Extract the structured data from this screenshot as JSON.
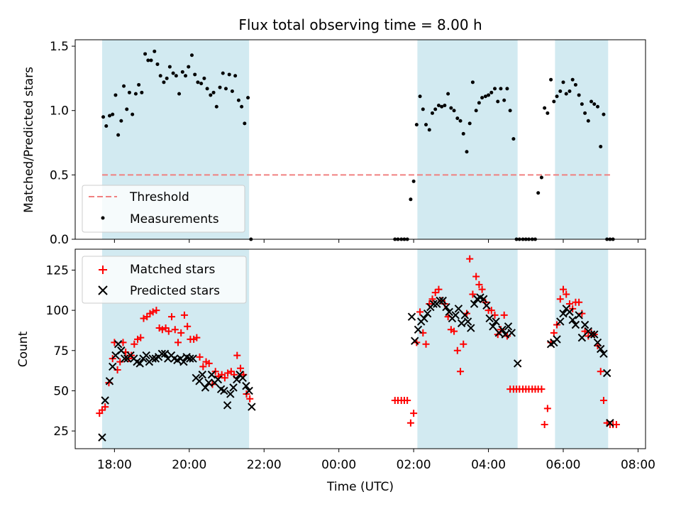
{
  "title": "Flux total observing time = 8.00 h",
  "colors": {
    "band": "#add8e6",
    "threshold": "#f08080",
    "measurement": "#000000",
    "matched": "#ff0000",
    "predicted": "#000000"
  },
  "chart_data": [
    {
      "type": "scatter",
      "ylabel": "Matched/Predicted stars",
      "xlabel": "",
      "ylim": [
        0,
        1.55
      ],
      "yticks": [
        0.0,
        0.5,
        1.0,
        1.5
      ],
      "ytick_labels": [
        "0.0",
        "0.5",
        "1.0",
        "1.5"
      ],
      "xlim_hours": [
        16.95,
        32.2
      ],
      "legend_position": "lower-left",
      "observing_windows_hours": [
        [
          17.67,
          21.6
        ],
        [
          26.1,
          28.78
        ],
        [
          29.78,
          31.2
        ]
      ],
      "threshold": {
        "name": "Threshold",
        "value": 0.5,
        "x_range_hours": [
          17.67,
          31.3
        ],
        "style": "dashed"
      },
      "series": [
        {
          "name": "Measurements",
          "x_hours": [
            17.7,
            17.78,
            17.87,
            17.95,
            18.03,
            18.1,
            18.18,
            18.25,
            18.33,
            18.4,
            18.48,
            18.57,
            18.65,
            18.73,
            18.82,
            18.9,
            18.98,
            19.07,
            19.15,
            19.23,
            19.32,
            19.4,
            19.48,
            19.57,
            19.65,
            19.73,
            19.82,
            19.9,
            19.98,
            20.07,
            20.15,
            20.23,
            20.32,
            20.4,
            20.48,
            20.57,
            20.65,
            20.73,
            20.82,
            20.9,
            20.98,
            21.07,
            21.15,
            21.23,
            21.32,
            21.4,
            21.48,
            21.57,
            21.65,
            25.5,
            25.58,
            25.67,
            25.75,
            25.83,
            25.92,
            26.0,
            26.08,
            26.17,
            26.25,
            26.33,
            26.42,
            26.5,
            26.58,
            26.67,
            26.75,
            26.83,
            26.92,
            27.0,
            27.08,
            27.17,
            27.25,
            27.33,
            27.42,
            27.5,
            27.58,
            27.67,
            27.75,
            27.83,
            27.92,
            28.0,
            28.08,
            28.17,
            28.25,
            28.33,
            28.42,
            28.5,
            28.58,
            28.67,
            28.75,
            28.83,
            28.92,
            29.0,
            29.08,
            29.17,
            29.25,
            29.33,
            29.42,
            29.5,
            29.58,
            29.67,
            29.75,
            29.83,
            29.92,
            30.0,
            30.08,
            30.17,
            30.25,
            30.33,
            30.42,
            30.5,
            30.58,
            30.67,
            30.75,
            30.83,
            30.92,
            31.0,
            31.08,
            31.17,
            31.25,
            31.33
          ],
          "values": [
            0.95,
            0.88,
            0.96,
            0.97,
            1.12,
            0.81,
            0.92,
            1.19,
            1.01,
            1.14,
            0.97,
            1.13,
            1.2,
            1.14,
            1.44,
            1.39,
            1.39,
            1.46,
            1.36,
            1.27,
            1.22,
            1.25,
            1.34,
            1.29,
            1.27,
            1.13,
            1.3,
            1.27,
            1.34,
            1.43,
            1.28,
            1.22,
            1.21,
            1.25,
            1.17,
            1.12,
            1.14,
            1.03,
            1.18,
            1.29,
            1.17,
            1.28,
            1.15,
            1.27,
            1.08,
            1.03,
            0.9,
            1.1,
            0.0,
            0.0,
            0.0,
            0.0,
            0.0,
            0.0,
            0.31,
            0.45,
            0.89,
            1.11,
            1.01,
            0.89,
            0.85,
            0.98,
            1.01,
            1.04,
            1.03,
            1.04,
            1.13,
            1.02,
            1.0,
            0.94,
            0.92,
            0.82,
            0.68,
            0.9,
            1.22,
            1.0,
            1.06,
            1.1,
            1.11,
            1.12,
            1.14,
            1.17,
            1.07,
            1.17,
            1.08,
            1.17,
            1.0,
            0.78,
            0.0,
            0.0,
            0.0,
            0.0,
            0.0,
            0.0,
            0.0,
            0.36,
            0.48,
            1.02,
            0.98,
            1.24,
            1.07,
            1.11,
            1.15,
            1.22,
            1.13,
            1.15,
            1.24,
            1.2,
            1.12,
            1.05,
            0.98,
            0.92,
            1.07,
            1.05,
            1.03,
            0.72,
            0.97,
            0.0,
            0.0,
            0.0
          ]
        }
      ]
    },
    {
      "type": "scatter",
      "ylabel": "Count",
      "xlabel": "Time (UTC)",
      "ylim": [
        14,
        138
      ],
      "yticks": [
        25,
        50,
        75,
        100,
        125
      ],
      "ytick_labels": [
        "25",
        "50",
        "75",
        "100",
        "125"
      ],
      "xlim_hours": [
        16.95,
        32.2
      ],
      "xticks_hours": [
        18,
        20,
        22,
        24,
        26,
        28,
        30,
        32
      ],
      "xtick_labels": [
        "18:00",
        "20:00",
        "22:00",
        "00:00",
        "02:00",
        "04:00",
        "06:00",
        "08:00"
      ],
      "legend_position": "upper-left",
      "observing_windows_hours": [
        [
          17.67,
          21.6
        ],
        [
          26.1,
          28.78
        ],
        [
          29.78,
          31.2
        ]
      ],
      "series": [
        {
          "name": "Matched stars",
          "marker": "+",
          "x_hours": [
            17.6,
            17.67,
            17.75,
            17.85,
            17.95,
            18.0,
            18.08,
            18.15,
            18.23,
            18.3,
            18.38,
            18.45,
            18.53,
            18.62,
            18.7,
            18.78,
            18.87,
            18.95,
            19.03,
            19.12,
            19.2,
            19.28,
            19.37,
            19.45,
            19.53,
            19.62,
            19.7,
            19.78,
            19.87,
            19.95,
            20.03,
            20.12,
            20.2,
            20.28,
            20.37,
            20.45,
            20.53,
            20.62,
            20.7,
            20.78,
            20.87,
            20.95,
            21.03,
            21.12,
            21.2,
            21.28,
            21.37,
            21.45,
            21.53,
            21.62,
            25.5,
            25.58,
            25.67,
            25.75,
            25.83,
            25.92,
            26.0,
            26.08,
            26.17,
            26.25,
            26.33,
            26.42,
            26.5,
            26.58,
            26.67,
            26.75,
            26.83,
            26.92,
            27.0,
            27.08,
            27.17,
            27.25,
            27.33,
            27.42,
            27.5,
            27.58,
            27.67,
            27.75,
            27.83,
            27.92,
            28.0,
            28.08,
            28.17,
            28.25,
            28.33,
            28.42,
            28.5,
            28.58,
            28.67,
            28.75,
            28.83,
            28.92,
            29.0,
            29.08,
            29.17,
            29.25,
            29.33,
            29.42,
            29.5,
            29.58,
            29.67,
            29.75,
            29.83,
            29.92,
            30.0,
            30.08,
            30.17,
            30.25,
            30.33,
            30.42,
            30.5,
            30.58,
            30.67,
            30.75,
            30.83,
            30.92,
            31.0,
            31.08,
            31.17,
            31.25,
            31.33,
            31.42
          ],
          "values": [
            36,
            38,
            40,
            55,
            70,
            80,
            63,
            68,
            80,
            74,
            70,
            72,
            79,
            82,
            83,
            95,
            96,
            98,
            99,
            100,
            89,
            88,
            89,
            87,
            96,
            88,
            80,
            86,
            97,
            90,
            82,
            82,
            83,
            71,
            65,
            68,
            67,
            54,
            62,
            59,
            60,
            58,
            61,
            62,
            60,
            72,
            64,
            60,
            48,
            45,
            44,
            44,
            44,
            44,
            44,
            30,
            36,
            80,
            99,
            86,
            79,
            104,
            107,
            111,
            113,
            106,
            104,
            96,
            88,
            87,
            75,
            62,
            79,
            98,
            132,
            110,
            121,
            116,
            113,
            105,
            100,
            100,
            97,
            85,
            88,
            97,
            84,
            51,
            51,
            51,
            51,
            51,
            51,
            51,
            51,
            51,
            51,
            51,
            29,
            39,
            80,
            86,
            91,
            107,
            113,
            110,
            104,
            101,
            105,
            105,
            98,
            87,
            84,
            86,
            85,
            78,
            62,
            44,
            30,
            29,
            29,
            29
          ]
        },
        {
          "name": "Predicted stars",
          "marker": "x",
          "x_hours": [
            17.67,
            17.75,
            17.87,
            17.95,
            18.03,
            18.1,
            18.18,
            18.27,
            18.35,
            18.43,
            18.52,
            18.6,
            18.68,
            18.77,
            18.85,
            18.93,
            19.02,
            19.1,
            19.18,
            19.27,
            19.35,
            19.43,
            19.52,
            19.6,
            19.68,
            19.77,
            19.85,
            19.93,
            20.02,
            20.1,
            20.18,
            20.27,
            20.35,
            20.43,
            20.52,
            20.6,
            20.68,
            20.77,
            20.85,
            20.93,
            21.02,
            21.1,
            21.18,
            21.27,
            21.35,
            21.43,
            21.52,
            21.6,
            21.67,
            25.95,
            26.03,
            26.12,
            26.2,
            26.28,
            26.37,
            26.45,
            26.53,
            26.62,
            26.7,
            26.78,
            26.87,
            26.95,
            27.03,
            27.12,
            27.2,
            27.28,
            27.37,
            27.45,
            27.53,
            27.62,
            27.7,
            27.78,
            27.87,
            27.95,
            28.03,
            28.12,
            28.2,
            28.28,
            28.37,
            28.45,
            28.53,
            28.62,
            28.78,
            29.67,
            29.75,
            29.83,
            29.92,
            30.0,
            30.08,
            30.17,
            30.25,
            30.33,
            30.42,
            30.5,
            30.58,
            30.67,
            30.75,
            30.83,
            30.92,
            31.0,
            31.08,
            31.17,
            31.25
          ],
          "values": [
            21,
            44,
            56,
            65,
            72,
            79,
            75,
            70,
            70,
            72,
            70,
            68,
            67,
            70,
            72,
            68,
            70,
            70,
            71,
            73,
            73,
            70,
            72,
            70,
            69,
            70,
            68,
            71,
            70,
            70,
            58,
            56,
            60,
            52,
            55,
            60,
            55,
            57,
            51,
            50,
            41,
            48,
            52,
            57,
            60,
            58,
            53,
            50,
            40,
            96,
            81,
            88,
            93,
            95,
            98,
            102,
            104,
            104,
            106,
            106,
            102,
            99,
            95,
            97,
            101,
            92,
            97,
            93,
            89,
            104,
            107,
            108,
            107,
            103,
            95,
            90,
            93,
            86,
            88,
            85,
            90,
            86,
            67,
            79,
            80,
            82,
            93,
            98,
            101,
            99,
            94,
            91,
            97,
            83,
            91,
            87,
            85,
            85,
            80,
            76,
            73,
            61,
            30
          ]
        }
      ]
    }
  ]
}
